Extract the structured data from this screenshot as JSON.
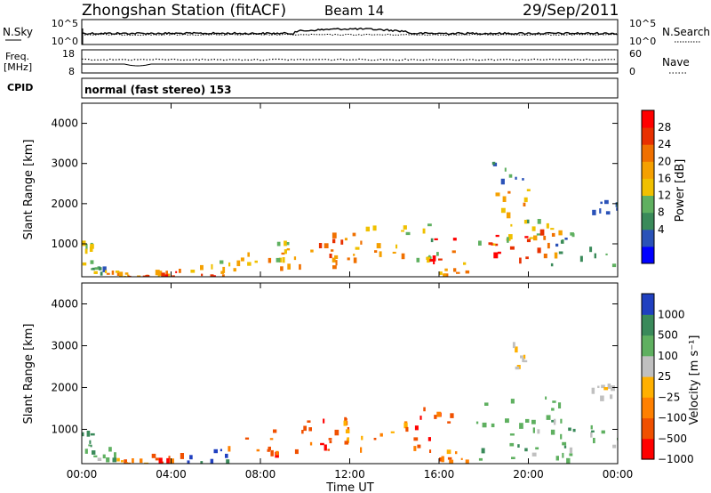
{
  "header": {
    "station": "Zhongshan Station (fitACF)",
    "beam": "Beam 14",
    "date": "29/Sep/2011"
  },
  "top_panel": {
    "left_label": "N.Sky",
    "left_ticks": [
      "10^5",
      "10^0"
    ],
    "right_label": "N.Search",
    "right_ticks": [
      "10^5",
      "10^0"
    ]
  },
  "freq_panel": {
    "left_label_1": "Freq.",
    "left_label_2": "[MHz]",
    "left_ticks": [
      "18",
      "8"
    ],
    "right_label": "Nave",
    "right_ticks": [
      "60",
      "0"
    ]
  },
  "cpid_panel": {
    "label": "CPID",
    "text": "normal (fast stereo) 153"
  },
  "colors": {
    "power": [
      "#0000ff",
      "#2a52b8",
      "#3a8a5a",
      "#5fb060",
      "#f0c000",
      "#f5a000",
      "#f07000",
      "#e83000",
      "#ff0000"
    ],
    "velocity": [
      "#2040c0",
      "#3a8a5a",
      "#5fb060",
      "#c0c0c0",
      "#ffb000",
      "#ff8000",
      "#f05000",
      "#ff0000"
    ]
  },
  "chart_data": [
    {
      "type": "heatmap",
      "panel": "power",
      "ylabel": "Slant Range [km]",
      "yticks": [
        "4000",
        "3000",
        "2000",
        "1000"
      ],
      "ylim": [
        180,
        4500
      ],
      "xlim": [
        0,
        24
      ],
      "colorbar_label": "Power [dB]",
      "colorbar_ticks": [
        "28",
        "24",
        "20",
        "16",
        "12",
        "8",
        "4"
      ],
      "colorbar_range": [
        0,
        30
      ],
      "regions": [
        {
          "x": [
            0.0,
            0.4
          ],
          "y": [
            450,
            1100
          ],
          "value": 14
        },
        {
          "x": [
            0.4,
            1.0
          ],
          "y": [
            300,
            500
          ],
          "value": 10
        },
        {
          "x": [
            1.0,
            2.0
          ],
          "y": [
            200,
            360
          ],
          "value": 20
        },
        {
          "x": [
            2.0,
            3.0
          ],
          "y": [
            200,
            260
          ],
          "value": 24
        },
        {
          "x": [
            3.0,
            5.0
          ],
          "y": [
            200,
            400
          ],
          "value": 18
        },
        {
          "x": [
            3.5,
            6.5
          ],
          "y": [
            200,
            340
          ],
          "value": 28
        },
        {
          "x": [
            5.0,
            7.0
          ],
          "y": [
            300,
            600
          ],
          "value": 16
        },
        {
          "x": [
            7.0,
            9.0
          ],
          "y": [
            400,
            800
          ],
          "value": 20
        },
        {
          "x": [
            8.0,
            10.0
          ],
          "y": [
            500,
            1200
          ],
          "value": 14
        },
        {
          "x": [
            9.5,
            11.5
          ],
          "y": [
            450,
            900
          ],
          "value": 22
        },
        {
          "x": [
            10.5,
            13.0
          ],
          "y": [
            600,
            1300
          ],
          "value": 24
        },
        {
          "x": [
            12.0,
            14.5
          ],
          "y": [
            700,
            1500
          ],
          "value": 18
        },
        {
          "x": [
            14.5,
            16.0
          ],
          "y": [
            600,
            1700
          ],
          "value": 12
        },
        {
          "x": [
            15.5,
            16.8
          ],
          "y": [
            600,
            1200
          ],
          "value": 28
        },
        {
          "x": [
            16.0,
            17.2
          ],
          "y": [
            250,
            600
          ],
          "value": 20
        },
        {
          "x": [
            17.5,
            20.0
          ],
          "y": [
            600,
            1300
          ],
          "value": 28
        },
        {
          "x": [
            17.5,
            21.0
          ],
          "y": [
            1000,
            1700
          ],
          "value": 14
        },
        {
          "x": [
            20.0,
            21.5
          ],
          "y": [
            700,
            1500
          ],
          "value": 22
        },
        {
          "x": [
            21.0,
            23.8
          ],
          "y": [
            500,
            1300
          ],
          "value": 8
        },
        {
          "x": [
            18.2,
            19.8
          ],
          "y": [
            2600,
            3100
          ],
          "value": 6
        },
        {
          "x": [
            18.5,
            20.5
          ],
          "y": [
            1700,
            2400
          ],
          "value": 18
        },
        {
          "x": [
            22.5,
            24.0
          ],
          "y": [
            1800,
            2100
          ],
          "value": 6
        }
      ]
    },
    {
      "type": "heatmap",
      "panel": "velocity",
      "ylabel": "Slant Range [km]",
      "yticks": [
        "4000",
        "3000",
        "2000",
        "1000"
      ],
      "ylim": [
        180,
        4500
      ],
      "xlim": [
        0,
        24
      ],
      "xticks": [
        "00:00",
        "04:00",
        "08:00",
        "12:00",
        "16:00",
        "20:00",
        "00:00"
      ],
      "xlabel": "Time UT",
      "colorbar_label": "Velocity [m s⁻¹]",
      "colorbar_ticks": [
        "1000",
        "500",
        "100",
        "25",
        "−25",
        "−100",
        "−500",
        "−1000"
      ],
      "regions": [
        {
          "x": [
            0.0,
            0.4
          ],
          "y": [
            450,
            1000
          ],
          "value": 500
        },
        {
          "x": [
            0.4,
            1.5
          ],
          "y": [
            280,
            600
          ],
          "value": 100
        },
        {
          "x": [
            1.5,
            3.0
          ],
          "y": [
            200,
            320
          ],
          "value": -100
        },
        {
          "x": [
            3.0,
            4.5
          ],
          "y": [
            200,
            600
          ],
          "value": -500
        },
        {
          "x": [
            4.0,
            7.0
          ],
          "y": [
            200,
            600
          ],
          "value": 1000
        },
        {
          "x": [
            6.5,
            9.0
          ],
          "y": [
            300,
            900
          ],
          "value": -500
        },
        {
          "x": [
            8.5,
            12.5
          ],
          "y": [
            500,
            1300
          ],
          "value": -500
        },
        {
          "x": [
            11.5,
            14.5
          ],
          "y": [
            650,
            1300
          ],
          "value": -100
        },
        {
          "x": [
            14.5,
            16.5
          ],
          "y": [
            500,
            1700
          ],
          "value": -500
        },
        {
          "x": [
            16.0,
            17.2
          ],
          "y": [
            250,
            600
          ],
          "value": -100
        },
        {
          "x": [
            17.5,
            22.0
          ],
          "y": [
            300,
            1200
          ],
          "value": 100
        },
        {
          "x": [
            18.0,
            21.5
          ],
          "y": [
            1200,
            1800
          ],
          "value": 100
        },
        {
          "x": [
            21.5,
            24.0
          ],
          "y": [
            500,
            1100
          ],
          "value": 100
        },
        {
          "x": [
            18.8,
            19.8
          ],
          "y": [
            2500,
            3100
          ],
          "value": 25
        },
        {
          "x": [
            22.5,
            24.0
          ],
          "y": [
            1800,
            2100
          ],
          "value": 25
        }
      ]
    }
  ]
}
